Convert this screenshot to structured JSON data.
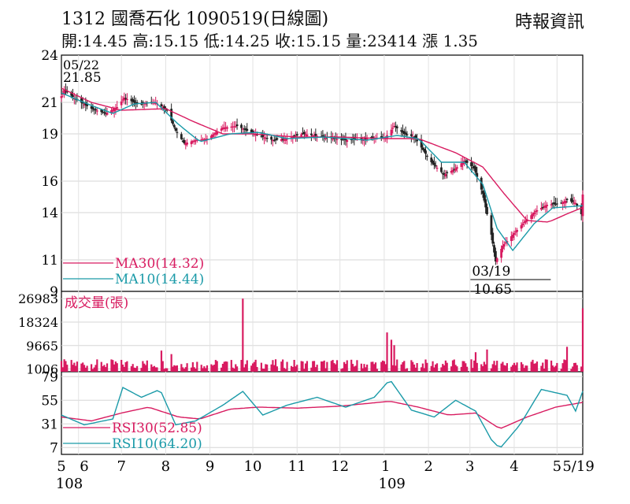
{
  "header": {
    "title": "1312  國喬石化 1090519(日線圖)",
    "ohlc": "開:14.45 高:15.15 低:14.25 收:15.15 量:23414 漲 1.35",
    "source": "時報資訊"
  },
  "chart_data": [
    {
      "type": "candlestick",
      "name": "price",
      "ylim": [
        9,
        24
      ],
      "yticks": [
        24,
        21,
        19,
        16,
        14,
        11,
        9
      ],
      "annotations": [
        {
          "label": "05/22",
          "value": "21.85",
          "x": "2019-05-22"
        },
        {
          "label": "03/19",
          "value": "10.65",
          "x": "2020-03-19"
        }
      ],
      "legend": [
        {
          "text": "MA30(14.32)",
          "color": "#d81b60"
        },
        {
          "text": "MA10(14.44)",
          "color": "#1a9aa8"
        }
      ],
      "candle_color": "#222222",
      "candle_up_color": "#d81b60",
      "close_path": [
        [
          "2019-05-20",
          21.4
        ],
        [
          "2019-05-22",
          21.8
        ],
        [
          "2019-05-30",
          21.2
        ],
        [
          "2019-06-10",
          20.6
        ],
        [
          "2019-06-20",
          20.3
        ],
        [
          "2019-06-28",
          20.7
        ],
        [
          "2019-07-03",
          21.3
        ],
        [
          "2019-07-12",
          20.9
        ],
        [
          "2019-07-25",
          21.0
        ],
        [
          "2019-08-02",
          20.5
        ],
        [
          "2019-08-08",
          19.2
        ],
        [
          "2019-08-14",
          18.4
        ],
        [
          "2019-08-22",
          18.6
        ],
        [
          "2019-08-30",
          18.7
        ],
        [
          "2019-09-10",
          19.4
        ],
        [
          "2019-09-20",
          19.5
        ],
        [
          "2019-09-27",
          19.2
        ],
        [
          "2019-10-05",
          18.9
        ],
        [
          "2019-10-15",
          18.6
        ],
        [
          "2019-10-25",
          18.7
        ],
        [
          "2019-11-05",
          19.0
        ],
        [
          "2019-11-20",
          18.8
        ],
        [
          "2019-12-05",
          18.6
        ],
        [
          "2019-12-20",
          18.7
        ],
        [
          "2020-01-02",
          18.8
        ],
        [
          "2020-01-08",
          19.5
        ],
        [
          "2020-01-15",
          19.0
        ],
        [
          "2020-01-22",
          18.8
        ],
        [
          "2020-02-03",
          17.2
        ],
        [
          "2020-02-12",
          16.4
        ],
        [
          "2020-02-20",
          16.8
        ],
        [
          "2020-02-26",
          17.3
        ],
        [
          "2020-03-04",
          16.8
        ],
        [
          "2020-03-10",
          15.2
        ],
        [
          "2020-03-16",
          12.6
        ],
        [
          "2020-03-19",
          10.9
        ],
        [
          "2020-03-24",
          11.9
        ],
        [
          "2020-03-31",
          12.6
        ],
        [
          "2020-04-08",
          13.4
        ],
        [
          "2020-04-16",
          14.1
        ],
        [
          "2020-04-24",
          14.5
        ],
        [
          "2020-05-04",
          14.6
        ],
        [
          "2020-05-08",
          14.8
        ],
        [
          "2020-05-14",
          14.6
        ],
        [
          "2020-05-18",
          13.9
        ],
        [
          "2020-05-19",
          15.15
        ]
      ],
      "ma30_path": [
        [
          "2019-05-20",
          21.9
        ],
        [
          "2019-06-10",
          21.0
        ],
        [
          "2019-07-01",
          20.5
        ],
        [
          "2019-08-01",
          20.6
        ],
        [
          "2019-08-20",
          19.8
        ],
        [
          "2019-09-10",
          19.0
        ],
        [
          "2019-10-01",
          19.0
        ],
        [
          "2019-11-01",
          18.8
        ],
        [
          "2019-12-01",
          18.8
        ],
        [
          "2020-01-02",
          18.7
        ],
        [
          "2020-01-25",
          18.7
        ],
        [
          "2020-02-20",
          17.8
        ],
        [
          "2020-03-10",
          16.9
        ],
        [
          "2020-03-25",
          15.2
        ],
        [
          "2020-04-10",
          13.5
        ],
        [
          "2020-04-25",
          13.4
        ],
        [
          "2020-05-10",
          14.0
        ],
        [
          "2020-05-19",
          14.32
        ]
      ],
      "ma10_path": [
        [
          "2019-05-20",
          21.6
        ],
        [
          "2019-06-10",
          20.8
        ],
        [
          "2019-06-25",
          20.3
        ],
        [
          "2019-07-10",
          20.9
        ],
        [
          "2019-07-25",
          21.0
        ],
        [
          "2019-08-10",
          19.6
        ],
        [
          "2019-08-25",
          18.5
        ],
        [
          "2019-09-15",
          19.0
        ],
        [
          "2019-10-05",
          19.1
        ],
        [
          "2019-10-25",
          18.7
        ],
        [
          "2019-11-20",
          18.8
        ],
        [
          "2019-12-20",
          18.6
        ],
        [
          "2020-01-10",
          18.9
        ],
        [
          "2020-01-25",
          18.7
        ],
        [
          "2020-02-10",
          17.2
        ],
        [
          "2020-02-26",
          17.2
        ],
        [
          "2020-03-10",
          15.8
        ],
        [
          "2020-03-20",
          13.0
        ],
        [
          "2020-03-31",
          11.6
        ],
        [
          "2020-04-15",
          13.3
        ],
        [
          "2020-04-28",
          14.3
        ],
        [
          "2020-05-19",
          14.44
        ]
      ]
    },
    {
      "type": "bar",
      "name": "volume",
      "title": "成交量(張)",
      "yticks": [
        26983,
        18324,
        9665,
        1006
      ],
      "ylim": [
        0,
        28500
      ],
      "color": "#d81b60",
      "spikes": [
        [
          "2019-09-24",
          26983
        ],
        [
          "2019-06-30",
          7200
        ],
        [
          "2019-07-29",
          7800
        ],
        [
          "2019-08-05",
          6500
        ],
        [
          "2020-01-03",
          14500
        ],
        [
          "2020-01-06",
          11800
        ],
        [
          "2020-01-08",
          9800
        ],
        [
          "2020-02-01",
          6800
        ],
        [
          "2020-03-05",
          7200
        ],
        [
          "2020-03-13",
          8200
        ],
        [
          "2020-05-08",
          9200
        ],
        [
          "2020-05-19",
          23414
        ]
      ]
    },
    {
      "type": "line",
      "name": "rsi",
      "ylim": [
        0,
        84
      ],
      "yticks": [
        79,
        55,
        31,
        7
      ],
      "legend": [
        {
          "text": "RSI30(52.85)",
          "color": "#d81b60"
        },
        {
          "text": "RSI10(64.20)",
          "color": "#1a9aa8"
        }
      ],
      "rsi30_path": [
        [
          "2019-05-20",
          38
        ],
        [
          "2019-06-10",
          34
        ],
        [
          "2019-07-01",
          42
        ],
        [
          "2019-07-20",
          48
        ],
        [
          "2019-08-10",
          38
        ],
        [
          "2019-08-25",
          36
        ],
        [
          "2019-09-15",
          46
        ],
        [
          "2019-10-05",
          48
        ],
        [
          "2019-11-01",
          47
        ],
        [
          "2019-12-01",
          49
        ],
        [
          "2020-01-05",
          54
        ],
        [
          "2020-01-25",
          48
        ],
        [
          "2020-02-15",
          40
        ],
        [
          "2020-03-05",
          42
        ],
        [
          "2020-03-22",
          26
        ],
        [
          "2020-04-10",
          38
        ],
        [
          "2020-04-30",
          48
        ],
        [
          "2020-05-19",
          52.85
        ]
      ],
      "rsi10_path": [
        [
          "2019-05-20",
          40
        ],
        [
          "2019-06-05",
          30
        ],
        [
          "2019-06-25",
          36
        ],
        [
          "2019-07-02",
          68
        ],
        [
          "2019-07-15",
          58
        ],
        [
          "2019-07-28",
          66
        ],
        [
          "2019-08-08",
          30
        ],
        [
          "2019-08-22",
          34
        ],
        [
          "2019-09-10",
          50
        ],
        [
          "2019-09-24",
          64
        ],
        [
          "2019-10-08",
          40
        ],
        [
          "2019-10-25",
          50
        ],
        [
          "2019-11-15",
          58
        ],
        [
          "2019-12-05",
          48
        ],
        [
          "2019-12-25",
          58
        ],
        [
          "2020-01-05",
          76
        ],
        [
          "2020-01-20",
          45
        ],
        [
          "2020-02-05",
          38
        ],
        [
          "2020-02-20",
          55
        ],
        [
          "2020-03-05",
          44
        ],
        [
          "2020-03-16",
          15
        ],
        [
          "2020-03-22",
          6
        ],
        [
          "2020-04-05",
          30
        ],
        [
          "2020-04-20",
          66
        ],
        [
          "2020-05-08",
          60
        ],
        [
          "2020-05-14",
          44
        ],
        [
          "2020-05-19",
          64.2
        ]
      ]
    }
  ],
  "x_axis": {
    "months": [
      "5",
      "6",
      "7",
      "8",
      "9",
      "10",
      "11",
      "12",
      "1",
      "2",
      "3",
      "4",
      "5",
      "5/19"
    ],
    "years": [
      "108",
      "109"
    ]
  }
}
